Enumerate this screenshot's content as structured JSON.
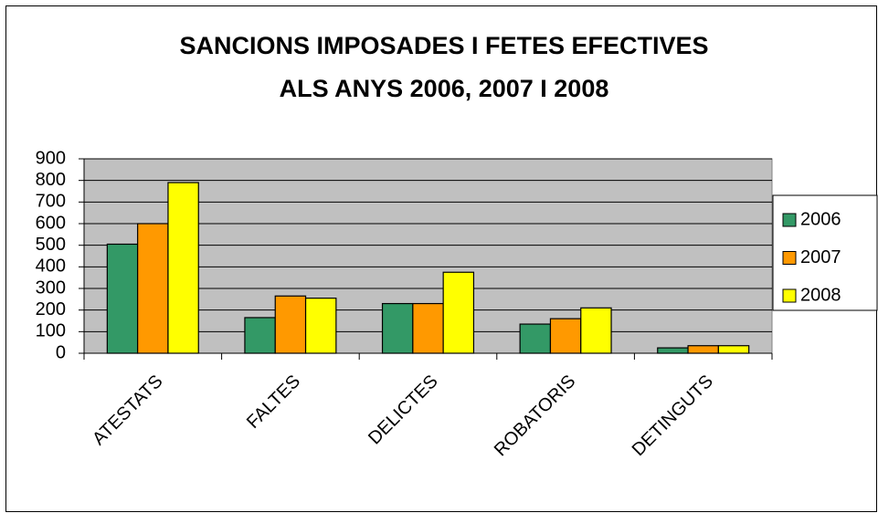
{
  "chart_data": {
    "type": "bar",
    "title": [
      "SANCIONS IMPOSADES I FETES EFECTIVES",
      "ALS ANYS 2006, 2007 I 2008"
    ],
    "categories": [
      "ATESTATS",
      "FALTES",
      "DELICTES",
      "ROBATORIS",
      "DETINGUTS"
    ],
    "series": [
      {
        "name": "2006",
        "color": "#339966",
        "values": [
          505,
          165,
          230,
          135,
          25
        ]
      },
      {
        "name": "2007",
        "color": "#ff9900",
        "values": [
          600,
          265,
          230,
          160,
          35
        ]
      },
      {
        "name": "2008",
        "color": "#ffff00",
        "values": [
          790,
          255,
          375,
          210,
          35
        ]
      }
    ],
    "ylim": [
      0,
      900
    ],
    "yticks": [
      0,
      100,
      200,
      300,
      400,
      500,
      600,
      700,
      800,
      900
    ],
    "grid": true,
    "legend": "right",
    "plot_background": "#c0c0c0"
  }
}
